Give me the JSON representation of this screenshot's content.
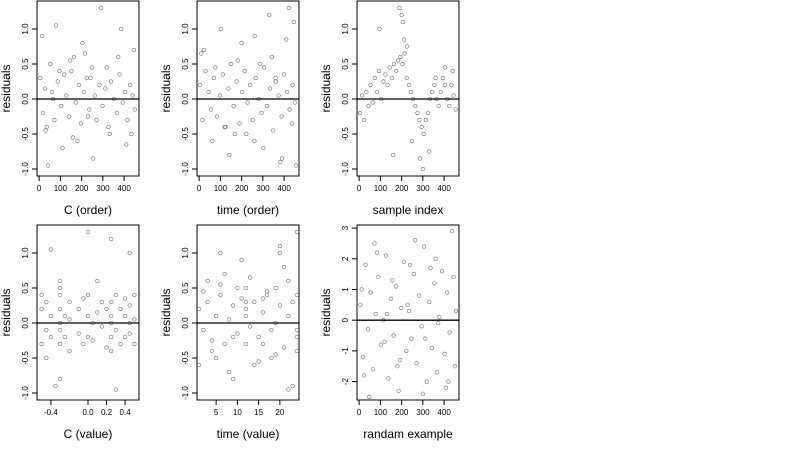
{
  "colors": {
    "point": "#6e6e6e",
    "frame": "#000000",
    "zero_line": "#000000",
    "background": "#ffffff"
  },
  "chart_data": [
    {
      "type": "scatter",
      "xlabel": "C (order)",
      "ylabel": "residuals",
      "xlim": [
        -10,
        470
      ],
      "ylim": [
        -1.1,
        1.4
      ],
      "xticks": [
        0,
        100,
        200,
        300,
        400
      ],
      "xtick_labels": [
        "0",
        "100",
        "200",
        "300",
        "400"
      ],
      "yticks": [
        -1.0,
        -0.5,
        0.0,
        0.5,
        1.0
      ],
      "ytick_labels": [
        "-1.0",
        "-0.5",
        "0.0",
        "0.5",
        "1.0"
      ],
      "hline": 0,
      "grid": false,
      "points_x": [
        5,
        18,
        28,
        36,
        52,
        60,
        72,
        88,
        104,
        118,
        128,
        140,
        152,
        164,
        172,
        188,
        196,
        210,
        224,
        236,
        248,
        262,
        270,
        284,
        298,
        312,
        326,
        338,
        352,
        366,
        378,
        394,
        404,
        416,
        428,
        440,
        450,
        14,
        42,
        80,
        110,
        146,
        180,
        216,
        254,
        292,
        332,
        372,
        410,
        446,
        30,
        96,
        158,
        204,
        242,
        318,
        386,
        434,
        66,
        230
      ],
      "points_y": [
        0.3,
        -0.2,
        0.15,
        -0.4,
        0.5,
        0.1,
        -0.3,
        0.25,
        -0.1,
        0.35,
        0.05,
        -0.25,
        0.4,
        0.6,
        -0.05,
        0.2,
        -0.35,
        0.1,
        0.3,
        -0.15,
        0.45,
        0.05,
        -0.3,
        0.2,
        -0.1,
        0.15,
        -0.4,
        0.25,
        0.0,
        -0.2,
        0.35,
        -0.05,
        0.1,
        -0.3,
        0.2,
        0.05,
        -0.15,
        0.9,
        -0.95,
        1.05,
        -0.7,
        0.55,
        -0.6,
        0.65,
        -0.85,
        1.3,
        -0.5,
        0.6,
        -0.65,
        0.7,
        -0.45,
        0.4,
        -0.55,
        0.8,
        0.3,
        0.45,
        1.0,
        -0.5,
        0.0,
        -0.25
      ]
    },
    {
      "type": "scatter",
      "xlabel": "time (order)",
      "ylabel": "residuals",
      "xlim": [
        -10,
        470
      ],
      "ylim": [
        -1.1,
        1.4
      ],
      "xticks": [
        0,
        100,
        200,
        300,
        400
      ],
      "xtick_labels": [
        "0",
        "100",
        "200",
        "300",
        "400"
      ],
      "yticks": [
        -1.0,
        -0.5,
        0.0,
        0.5,
        1.0
      ],
      "ytick_labels": [
        "-1.0",
        "-0.5",
        "0.0",
        "0.5",
        "1.0"
      ],
      "hline": 0,
      "grid": false,
      "points_x": [
        4,
        16,
        30,
        44,
        56,
        70,
        84,
        98,
        112,
        124,
        138,
        150,
        162,
        176,
        190,
        202,
        214,
        228,
        240,
        252,
        266,
        280,
        294,
        306,
        320,
        334,
        348,
        360,
        374,
        388,
        400,
        414,
        426,
        440,
        452,
        22,
        62,
        102,
        142,
        182,
        222,
        262,
        302,
        342,
        382,
        422,
        456,
        10,
        120,
        200,
        260,
        330,
        390,
        446,
        76,
        168,
        288,
        360,
        410,
        436
      ],
      "points_y": [
        0.2,
        -0.3,
        0.4,
        0.1,
        -0.15,
        0.3,
        -0.25,
        0.05,
        0.35,
        -0.4,
        0.15,
        0.5,
        -0.1,
        0.25,
        -0.35,
        0.1,
        0.4,
        -0.05,
        0.2,
        -0.3,
        0.3,
        0.0,
        -0.2,
        0.45,
        -0.1,
        0.15,
        -0.45,
        0.25,
        0.05,
        -0.25,
        0.35,
        0.1,
        -0.15,
        0.2,
        -0.05,
        0.7,
        -0.6,
        1.0,
        -0.8,
        0.55,
        -0.5,
        0.9,
        -0.7,
        0.6,
        -0.9,
        1.3,
        -0.95,
        0.65,
        -0.4,
        0.8,
        -0.6,
        1.2,
        -0.85,
        1.1,
        0.45,
        -0.5,
        0.5,
        0.3,
        0.85,
        -0.35
      ]
    },
    {
      "type": "scatter",
      "xlabel": "sample index",
      "ylabel": "residuals",
      "xlim": [
        -10,
        470
      ],
      "ylim": [
        -1.1,
        1.4
      ],
      "xticks": [
        0,
        100,
        200,
        300,
        400
      ],
      "xtick_labels": [
        "0",
        "100",
        "200",
        "300",
        "400"
      ],
      "yticks": [
        -1.0,
        -0.5,
        0.0,
        0.5,
        1.0
      ],
      "ytick_labels": [
        "-1.0",
        "-0.5",
        "0.0",
        "0.5",
        "1.0"
      ],
      "hline": 0,
      "grid": false,
      "points_x": [
        4,
        14,
        24,
        34,
        44,
        54,
        64,
        74,
        84,
        94,
        104,
        114,
        124,
        134,
        144,
        154,
        164,
        174,
        184,
        194,
        204,
        214,
        224,
        234,
        244,
        254,
        264,
        274,
        284,
        294,
        304,
        314,
        324,
        334,
        344,
        354,
        364,
        374,
        384,
        394,
        404,
        414,
        424,
        434,
        444,
        454,
        190,
        200,
        206,
        212,
        96,
        160,
        226,
        248,
        286,
        300,
        330,
        360,
        404,
        440
      ],
      "points_y": [
        -0.2,
        0.05,
        -0.3,
        0.1,
        -0.1,
        0.2,
        -0.05,
        0.3,
        0.1,
        0.4,
        0.0,
        0.25,
        0.35,
        0.2,
        0.45,
        0.3,
        0.5,
        0.4,
        0.55,
        0.6,
        0.5,
        0.65,
        0.3,
        0.2,
        0.1,
        0.0,
        -0.1,
        -0.2,
        -0.3,
        -0.4,
        -0.5,
        -0.3,
        -0.2,
        0.0,
        0.1,
        0.2,
        0.0,
        -0.1,
        0.1,
        0.3,
        0.2,
        0.0,
        -0.1,
        0.2,
        0.05,
        -0.15,
        1.3,
        1.2,
        1.1,
        0.85,
        1.0,
        -0.8,
        0.75,
        -0.6,
        -0.85,
        -1.0,
        -0.75,
        0.3,
        0.45,
        0.4
      ]
    },
    {
      "type": "scatter",
      "xlabel": "C (value)",
      "ylabel": "residuals",
      "xlim": [
        -0.55,
        0.55
      ],
      "ylim": [
        -1.1,
        1.4
      ],
      "xticks": [
        -0.4,
        0.0,
        0.2,
        0.4
      ],
      "xtick_labels": [
        "-0.4",
        "0.0",
        "0.2",
        "0.4"
      ],
      "yticks": [
        -1.0,
        -0.5,
        0.0,
        0.5,
        1.0
      ],
      "ytick_labels": [
        "-1.0",
        "-0.5",
        "0.0",
        "0.5",
        "1.0"
      ],
      "hline": 0,
      "grid": false,
      "points_x": [
        -0.5,
        -0.5,
        -0.5,
        -0.45,
        -0.45,
        -0.45,
        -0.4,
        -0.4,
        -0.3,
        -0.3,
        -0.3,
        -0.3,
        -0.3,
        -0.3,
        -0.3,
        -0.25,
        -0.25,
        -0.2,
        -0.2,
        -0.2,
        -0.1,
        -0.1,
        -0.05,
        -0.05,
        0.0,
        0.0,
        0.0,
        0.05,
        0.05,
        0.1,
        0.15,
        0.15,
        0.2,
        0.2,
        0.25,
        0.25,
        0.25,
        0.25,
        0.25,
        0.3,
        0.3,
        0.35,
        0.35,
        0.4,
        0.4,
        0.4,
        0.45,
        0.45,
        0.45,
        0.5,
        0.5,
        0.5,
        -0.4,
        -0.3,
        0.0,
        0.25,
        0.3,
        -0.35,
        0.1,
        0.45
      ],
      "points_y": [
        0.2,
        -0.3,
        0.4,
        -0.1,
        0.3,
        -0.5,
        0.1,
        -0.2,
        0.0,
        0.2,
        -0.1,
        0.4,
        -0.3,
        0.5,
        0.6,
        0.1,
        -0.2,
        0.3,
        -0.4,
        0.05,
        0.2,
        -0.15,
        0.35,
        -0.3,
        0.1,
        -0.2,
        0.4,
        0.0,
        -0.25,
        0.15,
        -0.05,
        0.3,
        -0.35,
        0.2,
        0.0,
        0.3,
        -0.2,
        -0.4,
        0.1,
        0.4,
        -0.1,
        0.2,
        -0.3,
        0.1,
        -0.2,
        0.35,
        0.0,
        -0.15,
        0.25,
        0.05,
        -0.3,
        0.4,
        1.05,
        -0.8,
        1.3,
        1.2,
        -0.95,
        -0.9,
        0.6,
        1.0
      ]
    },
    {
      "type": "scatter",
      "xlabel": "time (value)",
      "ylabel": "residuals",
      "xlim": [
        0.5,
        24.5
      ],
      "ylim": [
        -1.1,
        1.4
      ],
      "xticks": [
        5,
        10,
        15,
        20
      ],
      "xtick_labels": [
        "5",
        "10",
        "15",
        "20"
      ],
      "yticks": [
        -1.0,
        -0.5,
        0.0,
        0.5,
        1.0
      ],
      "ytick_labels": [
        "-1.0",
        "-0.5",
        "0.0",
        "0.5",
        "1.0"
      ],
      "hline": 0,
      "grid": false,
      "points_x": [
        1,
        2,
        3,
        4,
        5,
        6,
        7,
        8,
        9,
        10,
        11,
        12,
        13,
        14,
        15,
        16,
        17,
        18,
        19,
        20,
        21,
        22,
        23,
        24,
        1,
        3,
        5,
        7,
        9,
        11,
        12,
        12,
        12,
        13,
        15,
        17,
        19,
        21,
        23,
        24,
        24,
        2,
        4,
        6,
        8,
        10,
        14,
        16,
        18,
        20,
        22,
        24,
        12,
        20,
        24,
        6,
        16,
        22,
        9,
        19
      ],
      "points_y": [
        0.2,
        -0.1,
        0.3,
        -0.25,
        0.1,
        0.4,
        -0.3,
        0.05,
        0.25,
        -0.15,
        0.35,
        0.2,
        -0.05,
        0.3,
        -0.2,
        0.15,
        0.45,
        -0.1,
        0.0,
        0.25,
        -0.35,
        0.1,
        0.3,
        -0.2,
        -0.6,
        0.6,
        -0.5,
        0.7,
        -0.8,
        0.9,
        0.5,
        -0.3,
        0.3,
        0.65,
        -0.55,
        0.4,
        -0.45,
        0.8,
        -0.9,
        1.3,
        0.4,
        0.45,
        -0.4,
        0.55,
        -0.7,
        0.5,
        -0.6,
        0.35,
        -0.5,
        1.0,
        -0.95,
        -0.4,
        0.1,
        1.1,
        -0.1,
        1.0,
        -0.3,
        0.6,
        -0.2,
        0.5
      ]
    },
    {
      "type": "scatter",
      "xlabel": "randam example",
      "ylabel": "residuals",
      "xlim": [
        -10,
        470
      ],
      "ylim": [
        -2.6,
        3.1
      ],
      "xticks": [
        0,
        100,
        200,
        300,
        400
      ],
      "xtick_labels": [
        "0",
        "100",
        "200",
        "300",
        "400"
      ],
      "yticks": [
        -2,
        -1,
        0,
        1,
        2,
        3
      ],
      "ytick_labels": [
        "-2",
        "-1",
        "0",
        "1",
        "2",
        "3"
      ],
      "hline": 0,
      "grid": false,
      "points_x": [
        6,
        18,
        30,
        42,
        54,
        66,
        78,
        90,
        102,
        114,
        126,
        138,
        150,
        162,
        174,
        186,
        198,
        210,
        222,
        234,
        246,
        258,
        270,
        282,
        294,
        306,
        318,
        330,
        342,
        354,
        366,
        378,
        390,
        402,
        414,
        426,
        438,
        450,
        12,
        48,
        84,
        120,
        156,
        192,
        228,
        264,
        300,
        336,
        372,
        408,
        444,
        24,
        72,
        132,
        180,
        240,
        312,
        360,
        420,
        456
      ],
      "points_y": [
        0.5,
        -1.2,
        1.8,
        -0.3,
        0.9,
        -1.6,
        0.2,
        1.4,
        -0.8,
        0.0,
        2.1,
        -1.9,
        0.7,
        -0.5,
        1.1,
        -2.3,
        0.4,
        1.9,
        -1.0,
        0.3,
        -0.6,
        1.5,
        -1.4,
        0.8,
        -0.2,
        2.4,
        -2.0,
        0.6,
        -0.9,
        1.2,
        -1.7,
        0.1,
        1.6,
        -1.1,
        0.9,
        -0.4,
        2.9,
        -1.5,
        1.0,
        -2.5,
        2.2,
        -0.7,
        1.3,
        -1.3,
        0.5,
        2.6,
        -2.4,
        1.7,
        -0.1,
        -2.2,
        1.4,
        -1.8,
        2.5,
        0.2,
        -1.5,
        1.8,
        -0.6,
        2.0,
        -2.0,
        0.3
      ]
    }
  ]
}
